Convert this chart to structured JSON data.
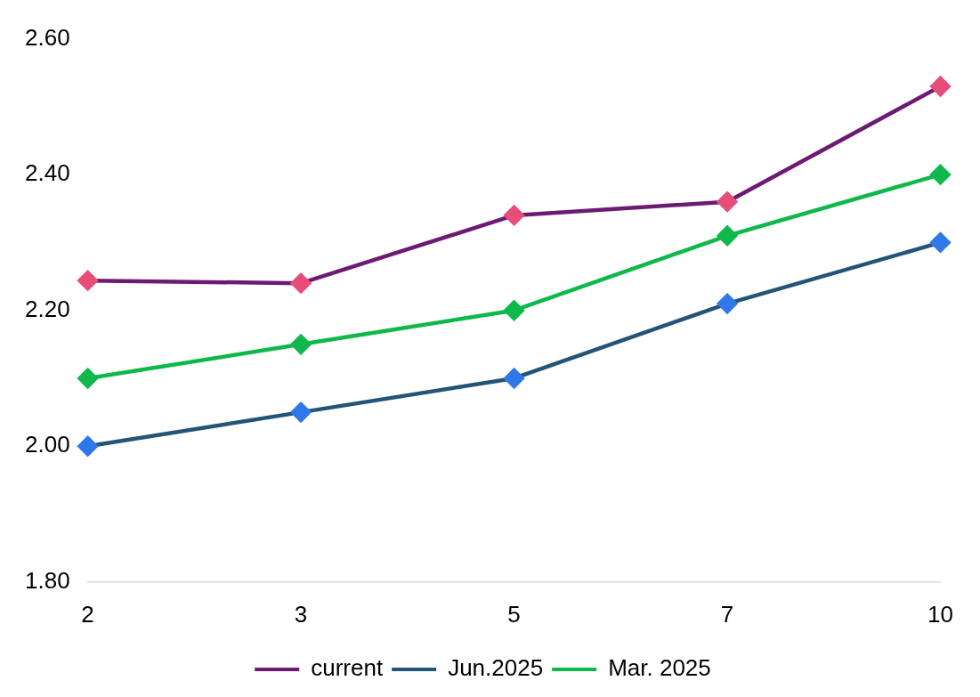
{
  "chart_data": {
    "type": "line",
    "categories": [
      "2",
      "3",
      "5",
      "7",
      "10"
    ],
    "series": [
      {
        "name": "current",
        "color": "#6c1a73",
        "colors": [
          "#e84d7a",
          "#e84d7a",
          "#e84d7a",
          "#e84d7a",
          "#e84d7a"
        ],
        "values": [
          2.244,
          2.24,
          2.34,
          2.36,
          2.53
        ]
      },
      {
        "name": "Jun.2025",
        "color": "#245476",
        "colors": [
          "#2f78ea",
          "#2f78ea",
          "#2f78ea",
          "#2f78ea",
          "#2f78ea"
        ],
        "values": [
          2.0,
          2.05,
          2.1,
          2.21,
          2.3
        ]
      },
      {
        "name": "Mar. 2025",
        "color": "#0fb84a",
        "colors": [
          "#0fb84a",
          "#0fb84a",
          "#0fb84a",
          "#0fb84a",
          "#0fb84a"
        ],
        "values": [
          2.1,
          2.15,
          2.2,
          2.31,
          2.4
        ]
      }
    ],
    "ylim": [
      1.8,
      2.6
    ],
    "yticks": [
      {
        "value": 1.8,
        "label": "1.80"
      },
      {
        "value": 2.0,
        "label": "2.00"
      },
      {
        "value": 2.2,
        "label": "2.20"
      },
      {
        "value": 2.4,
        "label": "2.40"
      },
      {
        "value": 2.6,
        "label": "2.60"
      }
    ],
    "grid": false,
    "legend": "bottom",
    "marker": "diamond",
    "line_style": "solid"
  }
}
